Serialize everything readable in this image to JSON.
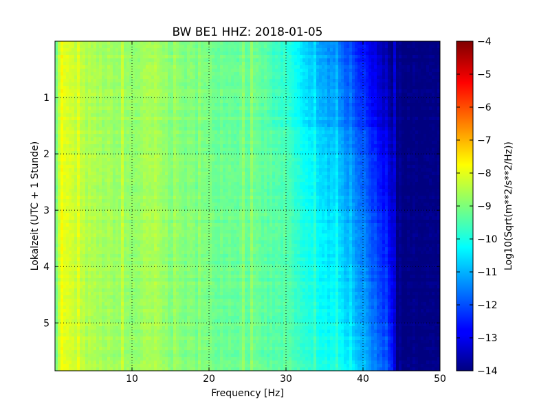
{
  "chart_data": {
    "type": "heatmap",
    "title": "BW BE1 HHZ: 2018-01-05",
    "xlabel": "Frequency [Hz]",
    "ylabel": "Lokalzeit (UTC + 1 Stunde)",
    "xlim": [
      0,
      50
    ],
    "ylim": [
      5.85,
      0
    ],
    "y_inverted": true,
    "grid": true,
    "x_ticks": [
      10,
      20,
      30,
      40,
      50
    ],
    "y_ticks": [
      1,
      2,
      3,
      4,
      5
    ],
    "colormap": "jet",
    "colorbar": {
      "label": "Log10(Sqrt(m**2/s**2/Hz))",
      "range": [
        -14,
        -4
      ],
      "ticks": [
        -4,
        -5,
        -6,
        -7,
        -8,
        -9,
        -10,
        -11,
        -12,
        -13,
        -14
      ]
    },
    "spectrum_profile": {
      "frequency_hz": [
        0.2,
        0.8,
        1.5,
        3,
        5,
        10,
        13,
        15,
        20,
        25,
        30,
        33,
        36,
        38,
        40,
        42,
        43.5,
        44.5,
        50
      ],
      "log10_amplitude": [
        -8.9,
        -7.8,
        -8.1,
        -8.4,
        -8.6,
        -8.8,
        -8.6,
        -8.9,
        -9.1,
        -9.2,
        -9.5,
        -10.2,
        -10.6,
        -11.0,
        -11.6,
        -12.3,
        -12.9,
        -14.0,
        -14.0
      ]
    },
    "colors": {
      "low": "#00007f",
      "mid": "#7dff7a",
      "high": "#7f0000"
    }
  }
}
